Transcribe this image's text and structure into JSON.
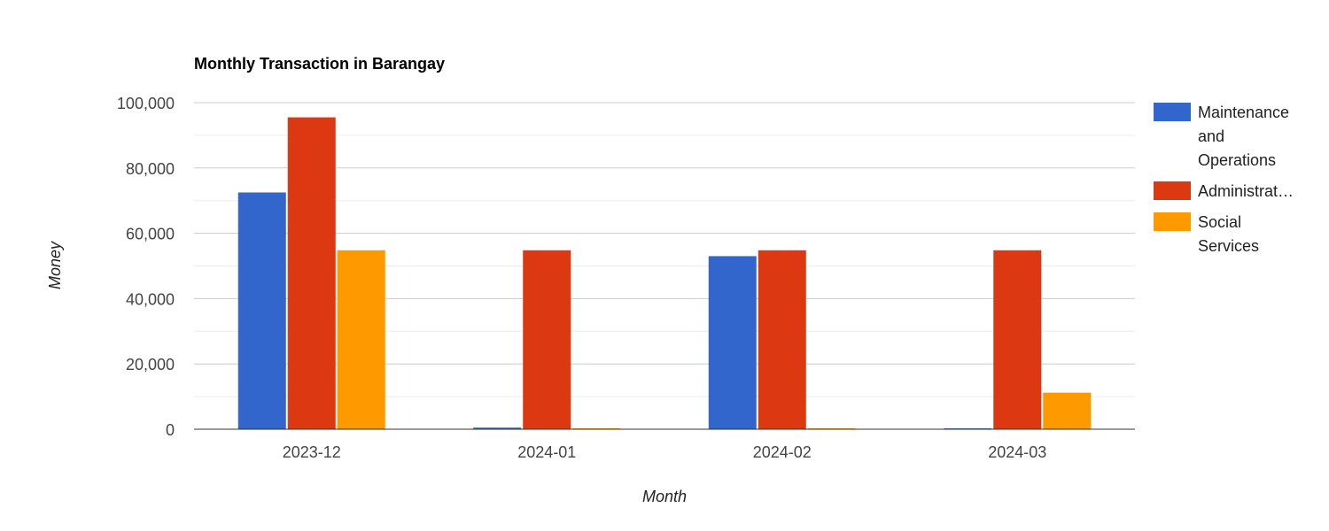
{
  "chart_data": {
    "type": "bar",
    "title": "Monthly Transaction in Barangay",
    "xlabel": "Month",
    "ylabel": "Money",
    "categories": [
      "2023-12",
      "2024-01",
      "2024-02",
      "2024-03"
    ],
    "series": [
      {
        "name": "Maintenance and Operations",
        "legend_lines": [
          "Maintenance",
          "and",
          "Operations"
        ],
        "color": "#3366cc",
        "values": [
          72500,
          500,
          53000,
          200
        ]
      },
      {
        "name": "Administrat…",
        "legend_lines": [
          "Administrat…"
        ],
        "color": "#dc3912",
        "values": [
          95500,
          54800,
          54800,
          54800
        ]
      },
      {
        "name": "Social Services",
        "legend_lines": [
          "Social",
          "Services"
        ],
        "color": "#ff9900",
        "values": [
          54800,
          200,
          200,
          11200
        ]
      }
    ],
    "ylim": [
      0,
      100000
    ],
    "yticks": [
      0,
      20000,
      40000,
      60000,
      80000,
      100000
    ],
    "ytick_labels": [
      "0",
      "20,000",
      "40,000",
      "60,000",
      "80,000",
      "100,000"
    ],
    "grid": true,
    "legend_position": "right"
  }
}
